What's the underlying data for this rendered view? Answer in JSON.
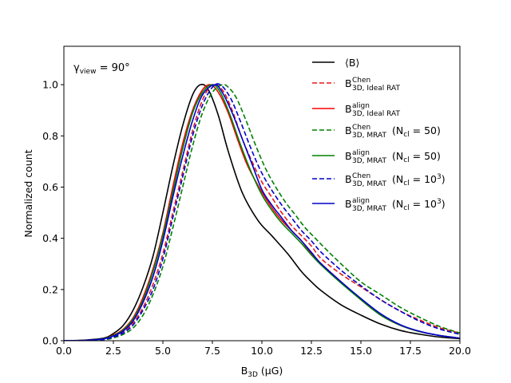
{
  "chart_data": {
    "type": "line",
    "title": "",
    "annotation": {
      "base": "γ",
      "sub": "view",
      "rest": " = 90°"
    },
    "xlabel": {
      "base": "B",
      "sub": "3D",
      "rest": " (μG)"
    },
    "ylabel": "Normalized count",
    "xlim": [
      0,
      20
    ],
    "ylim": [
      0,
      1.15
    ],
    "xticks": [
      0,
      2.5,
      5,
      7.5,
      10,
      12.5,
      15,
      17.5,
      20
    ],
    "xtick_labels": [
      "0.0",
      "2.5",
      "5.0",
      "7.5",
      "10.0",
      "12.5",
      "15.0",
      "17.5",
      "20.0"
    ],
    "yticks": [
      0,
      0.2,
      0.4,
      0.6,
      0.8,
      1.0
    ],
    "ytick_labels": [
      "0.0",
      "0.2",
      "0.4",
      "0.6",
      "0.8",
      "1.0"
    ],
    "legend_position": "top-right",
    "series": [
      {
        "name": "⟨B⟩",
        "label": {
          "base": "⟨B⟩",
          "sup": "",
          "sub": "",
          "rest": ""
        },
        "color": "#000000",
        "dash": "solid",
        "x": [
          0,
          1,
          2,
          2.5,
          3,
          3.5,
          4,
          4.5,
          5,
          5.5,
          6,
          6.5,
          6.9,
          7.3,
          7.8,
          8.3,
          9,
          9.8,
          10.5,
          11.3,
          12,
          12.5,
          13,
          14,
          15,
          16,
          17,
          18,
          19,
          20
        ],
        "y": [
          0,
          0.002,
          0.01,
          0.028,
          0.06,
          0.12,
          0.21,
          0.33,
          0.5,
          0.68,
          0.84,
          0.96,
          1.0,
          0.98,
          0.88,
          0.74,
          0.58,
          0.47,
          0.41,
          0.34,
          0.27,
          0.23,
          0.195,
          0.14,
          0.1,
          0.065,
          0.04,
          0.025,
          0.014,
          0.008
        ]
      },
      {
        "name": "B3D Chen Ideal RAT",
        "label": {
          "base": "B",
          "sup": "Chen",
          "sub": "3D, Ideal RAT",
          "rest": ""
        },
        "color": "#e41a1c",
        "dash": "dashed",
        "x": [
          0,
          1,
          2,
          2.5,
          3,
          3.5,
          4,
          4.5,
          5,
          5.5,
          6,
          6.5,
          7,
          7.5,
          8,
          8.5,
          9,
          9.5,
          10,
          10.5,
          11,
          11.5,
          12,
          12.5,
          13,
          14,
          15,
          16,
          17,
          18,
          19,
          20
        ],
        "y": [
          0,
          0.001,
          0.006,
          0.016,
          0.035,
          0.07,
          0.13,
          0.22,
          0.34,
          0.5,
          0.66,
          0.82,
          0.94,
          1.0,
          0.98,
          0.9,
          0.79,
          0.7,
          0.62,
          0.56,
          0.5,
          0.45,
          0.41,
          0.37,
          0.32,
          0.26,
          0.21,
          0.16,
          0.115,
          0.08,
          0.05,
          0.03
        ]
      },
      {
        "name": "B3D align Ideal RAT",
        "label": {
          "base": "B",
          "sup": "align",
          "sub": "3D, Ideal RAT",
          "rest": ""
        },
        "color": "#ff0000",
        "dash": "solid",
        "x": [
          0,
          1,
          2,
          2.5,
          3,
          3.5,
          4,
          4.5,
          5,
          5.5,
          6,
          6.5,
          7,
          7.4,
          7.8,
          8.3,
          8.8,
          9.3,
          10,
          10.5,
          11,
          11.5,
          12,
          12.5,
          13,
          14,
          15,
          16,
          17,
          18,
          19,
          20
        ],
        "y": [
          0,
          0.001,
          0.008,
          0.022,
          0.045,
          0.09,
          0.17,
          0.28,
          0.42,
          0.6,
          0.77,
          0.9,
          0.98,
          1.0,
          0.97,
          0.89,
          0.78,
          0.68,
          0.58,
          0.52,
          0.47,
          0.43,
          0.39,
          0.34,
          0.3,
          0.23,
          0.16,
          0.1,
          0.06,
          0.035,
          0.02,
          0.01
        ]
      },
      {
        "name": "B3D Chen MRAT Ncl=50",
        "label": {
          "base": "B",
          "sup": "Chen",
          "sub": "3D, MRAT",
          "rest": " (N",
          "rest_sub": "cl",
          "rest_tail": " = 50)"
        },
        "color": "#008000",
        "dash": "dashed",
        "x": [
          0,
          1,
          2,
          2.5,
          3,
          3.5,
          4,
          4.5,
          5,
          5.5,
          6,
          6.5,
          7,
          7.5,
          8,
          8.3,
          8.7,
          9.2,
          9.7,
          10.2,
          10.7,
          11.2,
          11.7,
          12.2,
          12.7,
          13.2,
          14,
          15,
          16,
          17,
          18,
          19,
          20
        ],
        "y": [
          0,
          0.001,
          0.004,
          0.011,
          0.025,
          0.05,
          0.1,
          0.18,
          0.29,
          0.44,
          0.6,
          0.76,
          0.89,
          0.97,
          1.0,
          0.99,
          0.95,
          0.86,
          0.76,
          0.67,
          0.6,
          0.54,
          0.49,
          0.44,
          0.4,
          0.36,
          0.3,
          0.23,
          0.18,
          0.13,
          0.09,
          0.055,
          0.03
        ]
      },
      {
        "name": "B3D align MRAT Ncl=50",
        "label": {
          "base": "B",
          "sup": "align",
          "sub": "3D, MRAT",
          "rest": " (N",
          "rest_sub": "cl",
          "rest_tail": " = 50)"
        },
        "color": "#008000",
        "dash": "solid",
        "x": [
          0,
          1,
          2,
          2.5,
          3,
          3.5,
          4,
          4.5,
          5,
          5.5,
          6,
          6.5,
          7,
          7.5,
          7.9,
          8.4,
          8.9,
          9.4,
          10,
          10.5,
          11,
          11.5,
          12,
          12.5,
          13,
          14,
          15,
          16,
          17,
          18,
          19,
          20
        ],
        "y": [
          0,
          0.001,
          0.008,
          0.02,
          0.042,
          0.085,
          0.16,
          0.27,
          0.41,
          0.58,
          0.75,
          0.89,
          0.97,
          1.0,
          0.97,
          0.88,
          0.77,
          0.67,
          0.57,
          0.51,
          0.46,
          0.42,
          0.38,
          0.335,
          0.295,
          0.225,
          0.16,
          0.1,
          0.06,
          0.035,
          0.02,
          0.01
        ]
      },
      {
        "name": "B3D Chen MRAT Ncl=10^3",
        "label": {
          "base": "B",
          "sup": "Chen",
          "sub": "3D, MRAT",
          "rest": " (N",
          "rest_sub": "cl",
          "rest_tail": " = 10",
          "rest_sup": "3",
          "rest_end": ")"
        },
        "color": "#0000cc",
        "dash": "dashed",
        "x": [
          0,
          1,
          2,
          2.5,
          3,
          3.5,
          4,
          4.5,
          5,
          5.5,
          6,
          6.5,
          7,
          7.5,
          7.9,
          8.4,
          8.9,
          9.4,
          9.9,
          10.4,
          11,
          11.5,
          12,
          12.5,
          13,
          14,
          15,
          16,
          17,
          18,
          19,
          20
        ],
        "y": [
          0,
          0.001,
          0.005,
          0.014,
          0.03,
          0.062,
          0.12,
          0.2,
          0.32,
          0.48,
          0.64,
          0.8,
          0.92,
          0.99,
          1.0,
          0.95,
          0.86,
          0.76,
          0.67,
          0.6,
          0.53,
          0.48,
          0.43,
          0.39,
          0.345,
          0.275,
          0.215,
          0.16,
          0.115,
          0.075,
          0.045,
          0.025
        ]
      },
      {
        "name": "B3D align MRAT Ncl=10^3",
        "label": {
          "base": "B",
          "sup": "align",
          "sub": "3D, MRAT",
          "rest": " (N",
          "rest_sub": "cl",
          "rest_tail": " = 10",
          "rest_sup": "3",
          "rest_end": ")"
        },
        "color": "#0000cc",
        "dash": "solid",
        "x": [
          0,
          1,
          2,
          2.5,
          3,
          3.5,
          4,
          4.5,
          5,
          5.5,
          6,
          6.5,
          7,
          7.6,
          8,
          8.5,
          9,
          9.5,
          10,
          10.5,
          11,
          11.5,
          12,
          12.5,
          13,
          14,
          15,
          16,
          17,
          18,
          19,
          20
        ],
        "y": [
          0,
          0.001,
          0.007,
          0.018,
          0.038,
          0.078,
          0.15,
          0.25,
          0.39,
          0.56,
          0.72,
          0.86,
          0.96,
          1.0,
          0.97,
          0.89,
          0.79,
          0.69,
          0.59,
          0.53,
          0.48,
          0.43,
          0.39,
          0.345,
          0.3,
          0.23,
          0.165,
          0.105,
          0.062,
          0.036,
          0.02,
          0.01
        ]
      }
    ]
  }
}
